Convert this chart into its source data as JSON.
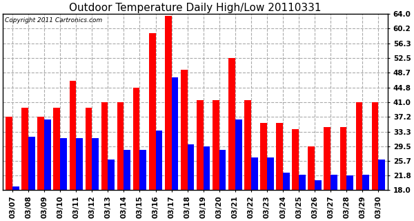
{
  "title": "Outdoor Temperature Daily High/Low 20110331",
  "copyright": "Copyright 2011 Cartronics.com",
  "dates": [
    "03/07",
    "03/08",
    "03/09",
    "03/10",
    "03/11",
    "03/12",
    "03/13",
    "03/14",
    "03/15",
    "03/16",
    "03/17",
    "03/18",
    "03/19",
    "03/20",
    "03/21",
    "03/22",
    "03/23",
    "03/24",
    "03/25",
    "03/26",
    "03/27",
    "03/28",
    "03/29",
    "03/30"
  ],
  "highs": [
    37.2,
    39.5,
    37.2,
    39.5,
    46.5,
    39.5,
    41.0,
    41.0,
    44.8,
    59.0,
    63.5,
    49.5,
    41.5,
    41.5,
    52.5,
    41.5,
    35.5,
    35.5,
    34.0,
    29.5,
    34.5,
    34.5,
    41.0,
    41.0
  ],
  "lows": [
    19.0,
    32.0,
    36.5,
    31.5,
    31.5,
    31.5,
    26.0,
    28.5,
    28.5,
    33.5,
    47.5,
    30.0,
    29.5,
    28.5,
    36.5,
    26.5,
    26.5,
    22.5,
    22.0,
    20.5,
    22.0,
    21.8,
    22.0,
    26.0
  ],
  "high_color": "#ff0000",
  "low_color": "#0000ff",
  "bg_color": "#ffffff",
  "plot_bg_color": "#ffffff",
  "grid_color": "#aaaaaa",
  "yticks": [
    18.0,
    21.8,
    25.7,
    29.5,
    33.3,
    37.2,
    41.0,
    44.8,
    48.7,
    52.5,
    56.3,
    60.2,
    64.0
  ],
  "ymin": 18.0,
  "ymax": 64.0,
  "bar_width": 0.42,
  "title_fontsize": 11,
  "tick_fontsize": 7.5,
  "copyright_fontsize": 6.5
}
